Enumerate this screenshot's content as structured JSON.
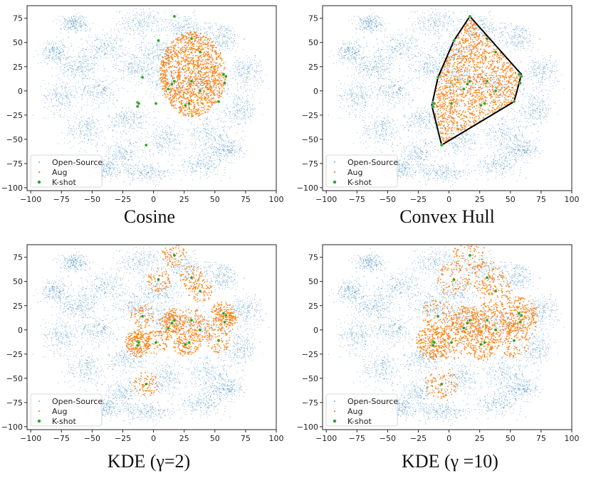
{
  "legend": {
    "entries": [
      "Open-Source",
      "Aug",
      "K-shot"
    ]
  },
  "colors": {
    "open_source": "#1f77b4",
    "aug": "#ff7f0e",
    "k_shot": "#2ca02c",
    "hull": "#000000"
  },
  "chart_data": [
    {
      "type": "scatter",
      "title": "",
      "caption": "Cosine",
      "xlabel": "",
      "ylabel": "",
      "xlim": [
        -103,
        100
      ],
      "ylim": [
        -103,
        88
      ],
      "xticks": [
        -100,
        -75,
        -50,
        -25,
        0,
        25,
        50,
        75,
        100
      ],
      "yticks": [
        -100,
        -75,
        -50,
        -25,
        0,
        25,
        50,
        75
      ],
      "legend_position": "lower-left",
      "series": [
        {
          "name": "Open-Source",
          "description": "background open-source sample cloud"
        },
        {
          "name": "Aug",
          "regions": [
            {
              "shape": "ellipse",
              "cx": 32,
              "cy": 17,
              "rx": 27,
              "ry": 44
            }
          ]
        },
        {
          "name": "K-shot",
          "points": [
            [
              17,
              77
            ],
            [
              31,
              54
            ],
            [
              4,
              52
            ],
            [
              38,
              40
            ],
            [
              -9,
              14
            ],
            [
              57,
              17
            ],
            [
              59,
              15
            ],
            [
              58,
              8
            ],
            [
              17,
              10
            ],
            [
              31,
              10
            ],
            [
              15,
              7
            ],
            [
              12,
              2
            ],
            [
              38,
              0
            ],
            [
              -13,
              -12
            ],
            [
              -12,
              -13
            ],
            [
              2,
              -13
            ],
            [
              -13,
              -16
            ],
            [
              29,
              -13
            ],
            [
              26,
              -15
            ],
            [
              53,
              -11
            ],
            [
              -6,
              -56
            ]
          ]
        }
      ]
    },
    {
      "type": "scatter",
      "title": "",
      "caption": "Convex Hull",
      "xlabel": "",
      "ylabel": "",
      "xlim": [
        -103,
        100
      ],
      "ylim": [
        -103,
        88
      ],
      "xticks": [
        -100,
        -75,
        -50,
        -25,
        0,
        25,
        50,
        75,
        100
      ],
      "yticks": [
        -100,
        -75,
        -50,
        -25,
        0,
        25,
        50,
        75
      ],
      "legend_position": "lower-left",
      "series": [
        {
          "name": "Open-Source",
          "description": "background open-source sample cloud"
        },
        {
          "name": "Aug",
          "regions": [
            {
              "shape": "polygon",
              "points": [
                [
                  17,
                  77
                ],
                [
                  59,
                  17
                ],
                [
                  53,
                  -11
                ],
                [
                  -6,
                  -56
                ],
                [
                  -14,
                  -15
                ],
                [
                  -9,
                  14
                ],
                [
                  4,
                  52
                ]
              ]
            }
          ]
        },
        {
          "name": "K-shot",
          "points": [
            [
              17,
              77
            ],
            [
              31,
              54
            ],
            [
              4,
              52
            ],
            [
              38,
              40
            ],
            [
              -9,
              14
            ],
            [
              57,
              17
            ],
            [
              59,
              15
            ],
            [
              58,
              8
            ],
            [
              17,
              10
            ],
            [
              31,
              10
            ],
            [
              15,
              7
            ],
            [
              12,
              2
            ],
            [
              38,
              0
            ],
            [
              -13,
              -12
            ],
            [
              -12,
              -13
            ],
            [
              2,
              -13
            ],
            [
              -13,
              -16
            ],
            [
              29,
              -13
            ],
            [
              26,
              -15
            ],
            [
              53,
              -11
            ],
            [
              -6,
              -56
            ]
          ]
        }
      ],
      "hull": [
        [
          17,
          77
        ],
        [
          59,
          17
        ],
        [
          53,
          -11
        ],
        [
          -6,
          -56
        ],
        [
          -14,
          -15
        ],
        [
          -9,
          14
        ],
        [
          4,
          52
        ]
      ]
    },
    {
      "type": "scatter",
      "title": "",
      "caption": "KDE (γ=2)",
      "xlabel": "",
      "ylabel": "",
      "xlim": [
        -103,
        100
      ],
      "ylim": [
        -103,
        88
      ],
      "xticks": [
        -100,
        -75,
        -50,
        -25,
        0,
        25,
        50,
        75,
        100
      ],
      "yticks": [
        -100,
        -75,
        -50,
        -25,
        0,
        25,
        50,
        75
      ],
      "legend_position": "lower-left",
      "series": [
        {
          "name": "Open-Source",
          "description": "background open-source sample cloud"
        },
        {
          "name": "Aug",
          "regions": [
            {
              "shape": "circles-around-k-shot",
              "radius": 10
            }
          ]
        },
        {
          "name": "K-shot",
          "points": [
            [
              17,
              77
            ],
            [
              31,
              54
            ],
            [
              4,
              52
            ],
            [
              38,
              40
            ],
            [
              -9,
              14
            ],
            [
              57,
              17
            ],
            [
              59,
              15
            ],
            [
              58,
              8
            ],
            [
              17,
              10
            ],
            [
              31,
              10
            ],
            [
              15,
              7
            ],
            [
              12,
              2
            ],
            [
              38,
              0
            ],
            [
              -13,
              -12
            ],
            [
              -12,
              -13
            ],
            [
              2,
              -13
            ],
            [
              -13,
              -16
            ],
            [
              29,
              -13
            ],
            [
              26,
              -15
            ],
            [
              53,
              -11
            ],
            [
              -6,
              -56
            ]
          ]
        }
      ]
    },
    {
      "type": "scatter",
      "title": "",
      "caption": "KDE (γ =10)",
      "xlabel": "",
      "ylabel": "",
      "xlim": [
        -103,
        100
      ],
      "ylim": [
        -103,
        88
      ],
      "xticks": [
        -100,
        -75,
        -50,
        -25,
        0,
        25,
        50,
        75,
        100
      ],
      "yticks": [
        -100,
        -75,
        -50,
        -25,
        0,
        25,
        50,
        75
      ],
      "legend_position": "lower-left",
      "series": [
        {
          "name": "Open-Source",
          "description": "background open-source sample cloud"
        },
        {
          "name": "Aug",
          "regions": [
            {
              "shape": "circles-around-k-shot",
              "radius": 14
            }
          ]
        },
        {
          "name": "K-shot",
          "points": [
            [
              17,
              77
            ],
            [
              31,
              54
            ],
            [
              4,
              52
            ],
            [
              38,
              40
            ],
            [
              -9,
              14
            ],
            [
              57,
              17
            ],
            [
              59,
              15
            ],
            [
              58,
              8
            ],
            [
              17,
              10
            ],
            [
              31,
              10
            ],
            [
              15,
              7
            ],
            [
              12,
              2
            ],
            [
              38,
              0
            ],
            [
              -13,
              -12
            ],
            [
              -12,
              -13
            ],
            [
              2,
              -13
            ],
            [
              -13,
              -16
            ],
            [
              29,
              -13
            ],
            [
              26,
              -15
            ],
            [
              53,
              -11
            ],
            [
              -6,
              -56
            ]
          ]
        }
      ]
    }
  ]
}
